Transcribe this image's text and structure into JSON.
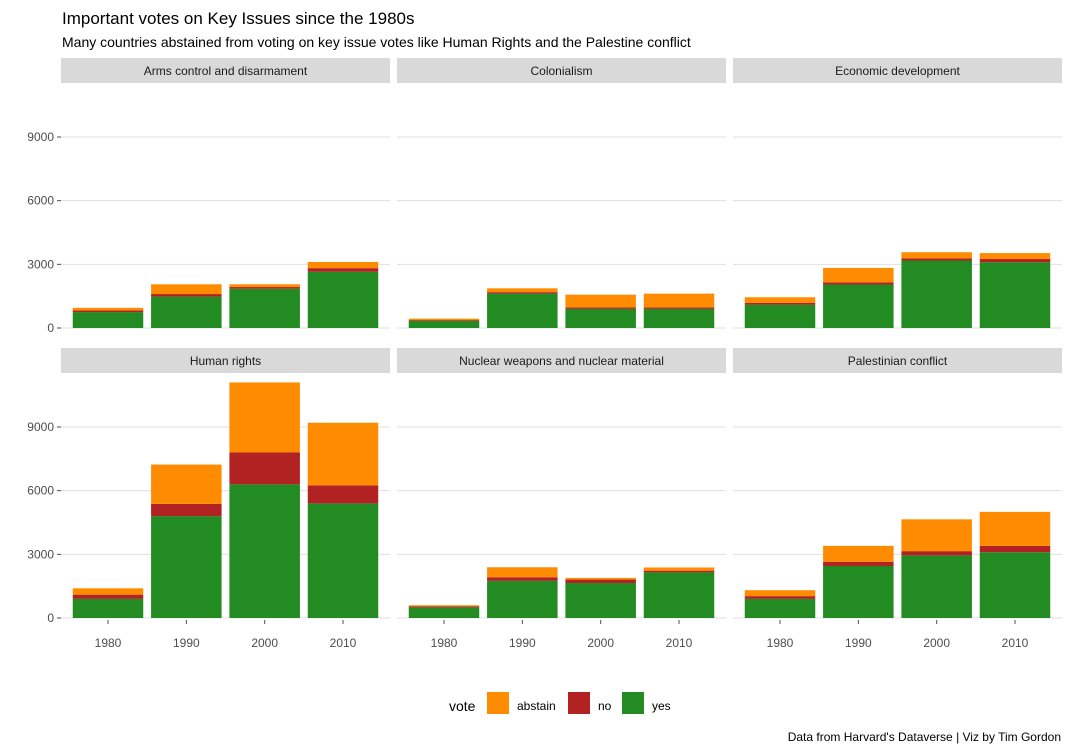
{
  "title": "Important votes on Key Issues since the 1980s",
  "subtitle": "Many countries abstained from voting on key issue votes like Human Rights and the Palestine conflict",
  "caption": "Data from Harvard's Dataverse | Viz by Tim Gordon",
  "legend": {
    "title": "vote",
    "items": [
      {
        "label": "abstain",
        "color": "#FF8C00"
      },
      {
        "label": "no",
        "color": "#B22222"
      },
      {
        "label": "yes",
        "color": "#228B22"
      }
    ]
  },
  "chart_data": {
    "type": "bar",
    "stacked": true,
    "faceted": true,
    "facet_layout": "2 rows x 3 columns",
    "grid": true,
    "legend_position": "bottom",
    "categories": [
      "1980",
      "1990",
      "2000",
      "2010"
    ],
    "yticks": [
      0,
      3000,
      6000,
      9000
    ],
    "ylim": [
      0,
      11100
    ],
    "series_order": [
      "yes",
      "no",
      "abstain"
    ],
    "panels": [
      {
        "label": "Arms control and disarmament",
        "series": [
          {
            "name": "yes",
            "values": [
              750,
              1480,
              1850,
              2650
            ]
          },
          {
            "name": "no",
            "values": [
              80,
              120,
              80,
              170
            ]
          },
          {
            "name": "abstain",
            "values": [
              120,
              460,
              130,
              290
            ]
          }
        ]
      },
      {
        "label": "Colonialism",
        "series": [
          {
            "name": "yes",
            "values": [
              330,
              1620,
              900,
              900
            ]
          },
          {
            "name": "no",
            "values": [
              40,
              70,
              70,
              70
            ]
          },
          {
            "name": "abstain",
            "values": [
              70,
              180,
              600,
              650
            ]
          }
        ]
      },
      {
        "label": "Economic development",
        "series": [
          {
            "name": "yes",
            "values": [
              1100,
              2050,
              3180,
              3100
            ]
          },
          {
            "name": "no",
            "values": [
              90,
              100,
              100,
              150
            ]
          },
          {
            "name": "abstain",
            "values": [
              260,
              680,
              290,
              280
            ]
          }
        ]
      },
      {
        "label": "Human rights",
        "series": [
          {
            "name": "yes",
            "values": [
              900,
              4800,
              6300,
              5400
            ]
          },
          {
            "name": "no",
            "values": [
              200,
              580,
              1500,
              850
            ]
          },
          {
            "name": "abstain",
            "values": [
              300,
              1850,
              3300,
              2950
            ]
          }
        ]
      },
      {
        "label": "Nuclear weapons and nuclear material",
        "series": [
          {
            "name": "yes",
            "values": [
              500,
              1750,
              1650,
              2150
            ]
          },
          {
            "name": "no",
            "values": [
              50,
              170,
              160,
              80
            ]
          },
          {
            "name": "abstain",
            "values": [
              50,
              470,
              80,
              150
            ]
          }
        ]
      },
      {
        "label": "Palestinian conflict",
        "series": [
          {
            "name": "yes",
            "values": [
              900,
              2450,
              2950,
              3100
            ]
          },
          {
            "name": "no",
            "values": [
              130,
              200,
              200,
              300
            ]
          },
          {
            "name": "abstain",
            "values": [
              280,
              750,
              1500,
              1600
            ]
          }
        ]
      }
    ]
  }
}
